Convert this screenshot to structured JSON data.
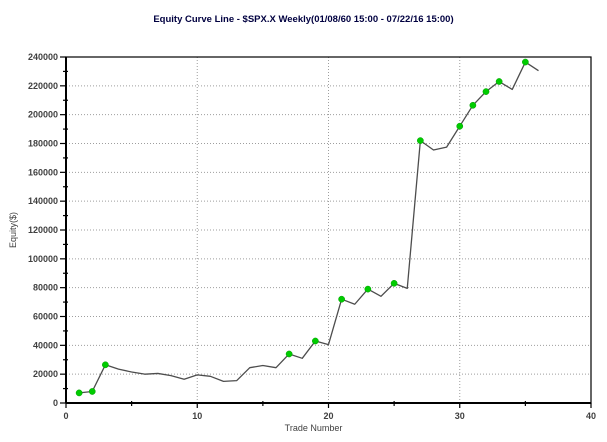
{
  "window": {
    "background": "#ffffff"
  },
  "header": {
    "title": "Equity Curve Line - $SPX.X Weekly(01/08/60 15:00 - 07/22/16 15:00)"
  },
  "chart_data": {
    "type": "line",
    "title": "Equity Curve Line - $SPX.X Weekly(01/08/60 15:00 - 07/22/16 15:00)",
    "xlabel": "Trade Number",
    "ylabel": "Equity($)",
    "xlim": [
      0,
      40
    ],
    "ylim": [
      0,
      240000
    ],
    "x_major_tick": 10,
    "x_minor_tick": 5,
    "y_major_tick": 20000,
    "y_minor_tick": 10000,
    "x_tick_labels": [
      "0",
      "10",
      "20",
      "30",
      "40"
    ],
    "y_tick_labels": [
      "0",
      "20000",
      "40000",
      "60000",
      "80000",
      "100000",
      "120000",
      "140000",
      "160000",
      "180000",
      "200000",
      "220000",
      "240000"
    ],
    "grid": "dotted gray lines at major ticks",
    "legend": "none",
    "series": [
      {
        "name": "Equity",
        "x": [
          1,
          2,
          3,
          4,
          5,
          6,
          7,
          8,
          9,
          10,
          11,
          12,
          13,
          14,
          15,
          16,
          17,
          18,
          19,
          20,
          21,
          22,
          23,
          24,
          25,
          26,
          27,
          28,
          29,
          30,
          31,
          32,
          33,
          34,
          35,
          36
        ],
        "y": [
          7000,
          8000,
          26500,
          23500,
          21500,
          20000,
          20500,
          19000,
          16500,
          19500,
          18500,
          15000,
          15500,
          24500,
          26000,
          24500,
          34000,
          31000,
          43000,
          40500,
          72000,
          68500,
          79000,
          74000,
          83000,
          79500,
          182000,
          175500,
          177500,
          192000,
          206500,
          216000,
          223000,
          217500,
          236500,
          230500
        ],
        "marker_trades": [
          1,
          2,
          3,
          17,
          19,
          21,
          23,
          25,
          27,
          30,
          31,
          32,
          33,
          35
        ],
        "marker_meaning": "green dot marks trades closing at a new equity high"
      }
    ],
    "colors": {
      "line": "#4d4d4d",
      "marker_fill": "#00cc00",
      "marker_edge": "#00a000",
      "grid": "#9e9e9e",
      "frame": "#000000",
      "tick_label": "#404040",
      "title": "#000040"
    }
  }
}
